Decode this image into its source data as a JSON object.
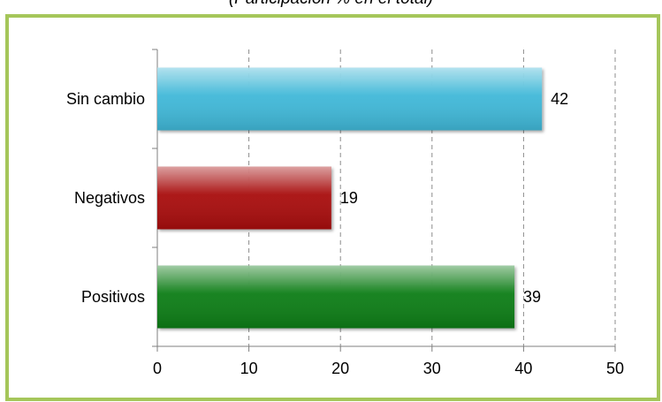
{
  "subtitle": "(Participación % en el total)",
  "colors": {
    "frame_border": "#a5c65a",
    "sin_cambio": "#3fb8d8",
    "negativos": "#a80f0f",
    "positivos": "#0f7d14"
  },
  "chart_data": {
    "type": "bar",
    "orientation": "horizontal",
    "title": "",
    "xlabel": "",
    "ylabel": "",
    "categories": [
      "Sin cambio",
      "Negativos",
      "Positivos"
    ],
    "values": [
      42,
      19,
      39
    ],
    "bar_colors": [
      "#3fb8d8",
      "#a80f0f",
      "#0f7d14"
    ],
    "data_labels": [
      "42",
      "19",
      "39"
    ],
    "xlim": [
      0,
      50
    ],
    "xticks": [
      0,
      10,
      20,
      30,
      40,
      50
    ],
    "xtick_labels": [
      "0",
      "10",
      "20",
      "30",
      "40",
      "50"
    ],
    "grid": "vertical dashed",
    "legend": "none"
  }
}
